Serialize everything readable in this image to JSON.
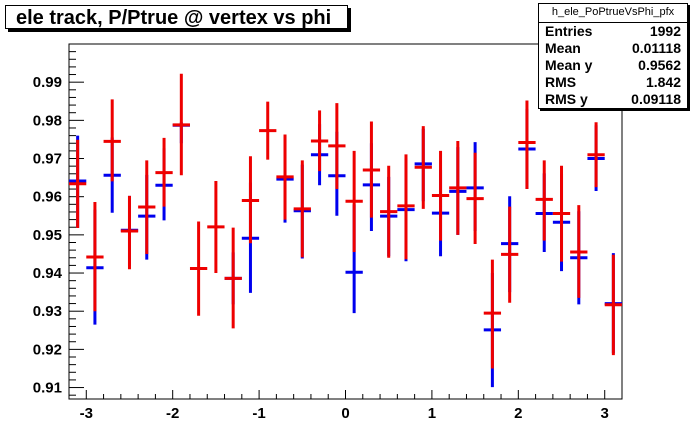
{
  "chart_data": {
    "type": "scatter",
    "title": "ele track, P/Ptrue @ vertex vs phi",
    "xlim": [
      -3.2,
      3.2
    ],
    "ylim": [
      0.907,
      1.0
    ],
    "x_ticks": [
      "-3",
      "-2",
      "-1",
      "0",
      "1",
      "2",
      "3"
    ],
    "y_ticks": [
      "0.91",
      "0.92",
      "0.93",
      "0.94",
      "0.95",
      "0.96",
      "0.97",
      "0.98",
      "0.99"
    ],
    "grid": false,
    "colors": {
      "series_blue": "#0000ee",
      "series_red": "#ee0000"
    },
    "stats": {
      "name": "h_ele_PoPtrueVsPhi_pfx",
      "rows": [
        {
          "label": "Entries",
          "value": "1992"
        },
        {
          "label": "Mean",
          "value": "0.01118"
        },
        {
          "label": "Mean y",
          "value": "0.9562"
        },
        {
          "label": "RMS",
          "value": "1.842"
        },
        {
          "label": "RMS y",
          "value": "0.09118"
        }
      ]
    },
    "series": [
      {
        "color": "#0000ee",
        "points": [
          {
            "x": -3.1,
            "y": 0.9641,
            "lo": 0.9518,
            "hi": 0.976
          },
          {
            "x": -2.9,
            "y": 0.9414,
            "lo": 0.9265,
            "hi": 0.9566
          },
          {
            "x": -2.7,
            "y": 0.9656,
            "lo": 0.9558,
            "hi": 0.9755
          },
          {
            "x": -2.5,
            "y": 0.9512,
            "lo": 0.9419,
            "hi": 0.9602
          },
          {
            "x": -2.3,
            "y": 0.9549,
            "lo": 0.9435,
            "hi": 0.9657
          },
          {
            "x": -2.1,
            "y": 0.963,
            "lo": 0.9538,
            "hi": 0.9727
          },
          {
            "x": -1.9,
            "y": 0.9787,
            "lo": 0.974,
            "hi": 0.9795
          },
          {
            "x": -1.3,
            "y": 0.9386,
            "lo": 0.9318,
            "hi": 0.9454
          },
          {
            "x": -1.1,
            "y": 0.9491,
            "lo": 0.9348,
            "hi": 0.9637
          },
          {
            "x": -0.7,
            "y": 0.9646,
            "lo": 0.9532,
            "hi": 0.976
          },
          {
            "x": -0.5,
            "y": 0.9563,
            "lo": 0.9438,
            "hi": 0.9684
          },
          {
            "x": -0.3,
            "y": 0.971,
            "lo": 0.963,
            "hi": 0.979
          },
          {
            "x": -0.1,
            "y": 0.9655,
            "lo": 0.955,
            "hi": 0.977
          },
          {
            "x": 0.1,
            "y": 0.9402,
            "lo": 0.9295,
            "hi": 0.958
          },
          {
            "x": 0.3,
            "y": 0.9631,
            "lo": 0.951,
            "hi": 0.974
          },
          {
            "x": 0.5,
            "y": 0.9549,
            "lo": 0.9444,
            "hi": 0.9652
          },
          {
            "x": 0.7,
            "y": 0.9566,
            "lo": 0.9431,
            "hi": 0.9701
          },
          {
            "x": 0.9,
            "y": 0.9686,
            "lo": 0.9588,
            "hi": 0.9778
          },
          {
            "x": 1.1,
            "y": 0.9557,
            "lo": 0.9444,
            "hi": 0.967
          },
          {
            "x": 1.3,
            "y": 0.9614,
            "lo": 0.95,
            "hi": 0.973
          },
          {
            "x": 1.5,
            "y": 0.9623,
            "lo": 0.951,
            "hi": 0.9743
          },
          {
            "x": 1.7,
            "y": 0.9251,
            "lo": 0.9101,
            "hi": 0.94
          },
          {
            "x": 1.9,
            "y": 0.9477,
            "lo": 0.935,
            "hi": 0.9601
          },
          {
            "x": 2.1,
            "y": 0.9725,
            "lo": 0.962,
            "hi": 0.983
          },
          {
            "x": 2.3,
            "y": 0.9556,
            "lo": 0.9455,
            "hi": 0.9661
          },
          {
            "x": 2.5,
            "y": 0.9533,
            "lo": 0.9405,
            "hi": 0.966
          },
          {
            "x": 2.7,
            "y": 0.944,
            "lo": 0.9318,
            "hi": 0.9562
          },
          {
            "x": 2.9,
            "y": 0.97,
            "lo": 0.9615,
            "hi": 0.9787
          },
          {
            "x": 3.1,
            "y": 0.932,
            "lo": 0.919,
            "hi": 0.9452
          }
        ]
      },
      {
        "color": "#ee0000",
        "points": [
          {
            "x": -3.1,
            "y": 0.9634,
            "lo": 0.9518,
            "hi": 0.9749
          },
          {
            "x": -2.9,
            "y": 0.9442,
            "lo": 0.93,
            "hi": 0.9586
          },
          {
            "x": -2.7,
            "y": 0.9745,
            "lo": 0.964,
            "hi": 0.9855
          },
          {
            "x": -2.5,
            "y": 0.951,
            "lo": 0.941,
            "hi": 0.9602
          },
          {
            "x": -2.3,
            "y": 0.9573,
            "lo": 0.945,
            "hi": 0.9695
          },
          {
            "x": -2.1,
            "y": 0.9663,
            "lo": 0.9574,
            "hi": 0.9754
          },
          {
            "x": -1.9,
            "y": 0.9788,
            "lo": 0.9656,
            "hi": 0.9922
          },
          {
            "x": -1.7,
            "y": 0.9412,
            "lo": 0.9288,
            "hi": 0.9535
          },
          {
            "x": -1.5,
            "y": 0.9521,
            "lo": 0.94,
            "hi": 0.9641
          },
          {
            "x": -1.3,
            "y": 0.9386,
            "lo": 0.9255,
            "hi": 0.9519
          },
          {
            "x": -1.1,
            "y": 0.959,
            "lo": 0.9478,
            "hi": 0.9706
          },
          {
            "x": -0.9,
            "y": 0.9773,
            "lo": 0.9697,
            "hi": 0.9849
          },
          {
            "x": -0.7,
            "y": 0.9652,
            "lo": 0.954,
            "hi": 0.9763
          },
          {
            "x": -0.5,
            "y": 0.9568,
            "lo": 0.9441,
            "hi": 0.9695
          },
          {
            "x": -0.3,
            "y": 0.9746,
            "lo": 0.9667,
            "hi": 0.9826
          },
          {
            "x": -0.1,
            "y": 0.9733,
            "lo": 0.962,
            "hi": 0.9845
          },
          {
            "x": 0.1,
            "y": 0.9588,
            "lo": 0.9455,
            "hi": 0.972
          },
          {
            "x": 0.3,
            "y": 0.967,
            "lo": 0.9545,
            "hi": 0.9797
          },
          {
            "x": 0.5,
            "y": 0.9561,
            "lo": 0.944,
            "hi": 0.9681
          },
          {
            "x": 0.7,
            "y": 0.9576,
            "lo": 0.9436,
            "hi": 0.9711
          },
          {
            "x": 0.9,
            "y": 0.9677,
            "lo": 0.9568,
            "hi": 0.9785
          },
          {
            "x": 1.1,
            "y": 0.9603,
            "lo": 0.9485,
            "hi": 0.972
          },
          {
            "x": 1.3,
            "y": 0.9623,
            "lo": 0.95,
            "hi": 0.9746
          },
          {
            "x": 1.5,
            "y": 0.9595,
            "lo": 0.9476,
            "hi": 0.9715
          },
          {
            "x": 1.7,
            "y": 0.9295,
            "lo": 0.915,
            "hi": 0.9435
          },
          {
            "x": 1.9,
            "y": 0.9449,
            "lo": 0.9322,
            "hi": 0.9574
          },
          {
            "x": 2.1,
            "y": 0.9742,
            "lo": 0.962,
            "hi": 0.9852
          },
          {
            "x": 2.3,
            "y": 0.9593,
            "lo": 0.9485,
            "hi": 0.9695
          },
          {
            "x": 2.5,
            "y": 0.9556,
            "lo": 0.943,
            "hi": 0.9681
          },
          {
            "x": 2.7,
            "y": 0.9455,
            "lo": 0.9335,
            "hi": 0.9578
          },
          {
            "x": 2.9,
            "y": 0.971,
            "lo": 0.9625,
            "hi": 0.9795
          },
          {
            "x": 3.1,
            "y": 0.9317,
            "lo": 0.9185,
            "hi": 0.9448
          }
        ]
      }
    ]
  }
}
